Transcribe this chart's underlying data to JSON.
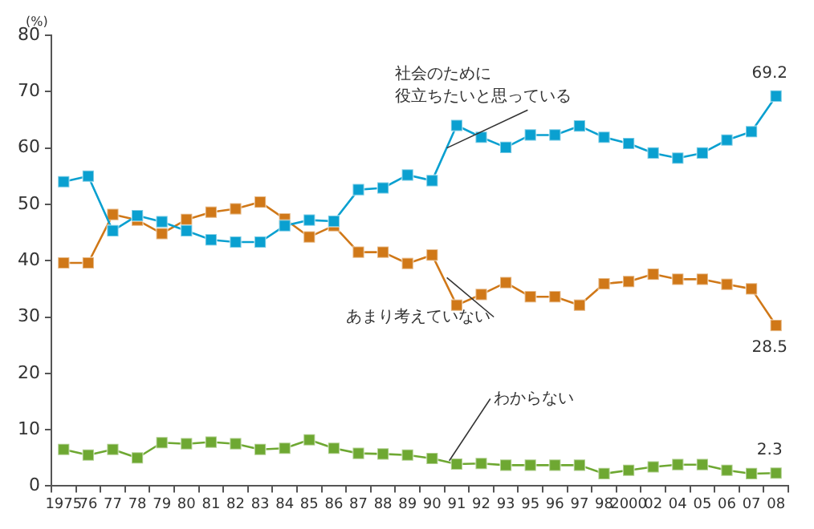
{
  "chart_data": {
    "type": "line",
    "ylabel": "(%)",
    "categories": [
      "1975",
      "76",
      "77",
      "78",
      "79",
      "80",
      "81",
      "82",
      "83",
      "84",
      "85",
      "86",
      "87",
      "88",
      "89",
      "90",
      "91",
      "92",
      "93",
      "95",
      "96",
      "97",
      "98",
      "2000",
      "02",
      "04",
      "05",
      "06",
      "07",
      "08"
    ],
    "ylim": [
      0,
      80
    ],
    "yticks": [
      0,
      10,
      20,
      30,
      40,
      50,
      60,
      70,
      80
    ],
    "grid": false,
    "legend": false,
    "marker": "square",
    "line_style": "solid",
    "series": [
      {
        "name": "社会のために役立ちたいと思っている",
        "color": "#0aa0d0",
        "values": [
          54.0,
          55.0,
          45.3,
          48.0,
          46.9,
          45.3,
          43.7,
          43.3,
          43.3,
          46.2,
          47.2,
          47.0,
          52.6,
          52.9,
          55.2,
          54.2,
          64.0,
          61.9,
          60.1,
          62.3,
          62.3,
          63.9,
          61.9,
          60.8,
          59.1,
          58.2,
          59.1,
          61.4,
          62.9,
          69.2
        ],
        "value_labels": [
          null,
          null,
          null,
          null,
          null,
          null,
          null,
          null,
          null,
          null,
          null,
          null,
          null,
          null,
          null,
          null,
          null,
          null,
          null,
          null,
          null,
          null,
          null,
          null,
          null,
          null,
          null,
          null,
          null,
          "69.2"
        ]
      },
      {
        "name": "あまり考えていない",
        "color": "#d07818",
        "values": [
          39.6,
          39.6,
          48.2,
          47.2,
          44.8,
          47.3,
          48.6,
          49.2,
          50.4,
          47.4,
          44.2,
          46.2,
          41.5,
          41.5,
          39.5,
          41.0,
          32.1,
          34.0,
          36.1,
          33.6,
          33.6,
          32.1,
          35.9,
          36.3,
          37.6,
          36.7,
          36.7,
          35.8,
          35.0,
          28.5
        ],
        "value_labels": [
          null,
          null,
          null,
          null,
          null,
          null,
          null,
          null,
          null,
          null,
          null,
          null,
          null,
          null,
          null,
          null,
          null,
          null,
          null,
          null,
          null,
          null,
          null,
          null,
          null,
          null,
          null,
          null,
          null,
          "28.5"
        ]
      },
      {
        "name": "わからない",
        "color": "#6ea832",
        "values": [
          6.5,
          5.5,
          6.5,
          5.0,
          7.7,
          7.5,
          7.8,
          7.5,
          6.5,
          6.7,
          8.2,
          6.7,
          5.8,
          5.7,
          5.5,
          4.9,
          3.9,
          4.0,
          3.7,
          3.7,
          3.7,
          3.7,
          2.2,
          2.8,
          3.4,
          3.8,
          3.8,
          2.8,
          2.2,
          2.3
        ],
        "value_labels": [
          null,
          null,
          null,
          null,
          null,
          null,
          null,
          null,
          null,
          null,
          null,
          null,
          null,
          null,
          null,
          null,
          null,
          null,
          null,
          null,
          null,
          null,
          null,
          null,
          null,
          null,
          null,
          null,
          null,
          "2.3"
        ]
      }
    ]
  }
}
